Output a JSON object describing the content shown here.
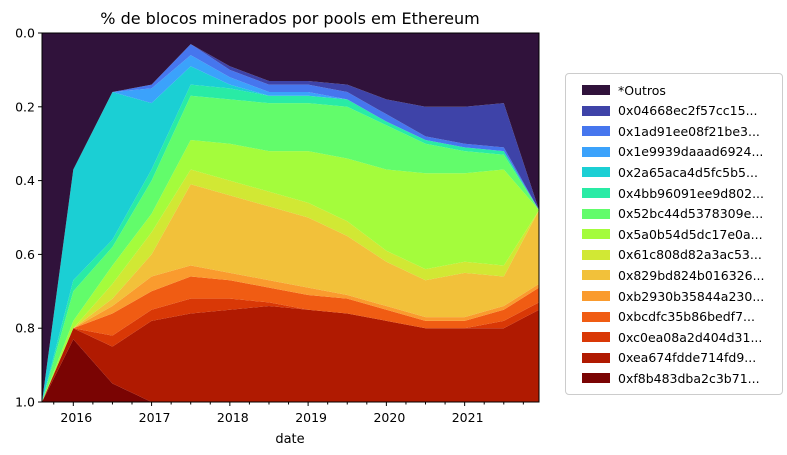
{
  "chart_data": {
    "type": "area",
    "title": "% de blocos minerados por pools em Ethereum",
    "xlabel": "date",
    "ylabel": "",
    "ylim": [
      1.0,
      0.0
    ],
    "y_inverted": true,
    "xlim": [
      2015.6,
      2021.95
    ],
    "xticks": [
      2016,
      2017,
      2018,
      2019,
      2020,
      2021
    ],
    "xtick_labels": [
      "2016",
      "2017",
      "2018",
      "2019",
      "2020",
      "2021"
    ],
    "yticks": [
      0.0,
      0.2,
      0.4,
      0.6,
      0.8,
      1.0
    ],
    "ytick_labels": [
      "0.0",
      "0.2",
      "0.4",
      "0.6",
      "0.8",
      "1.0"
    ],
    "stacking": "cumulative share from bottom (1.0) upward; Outros fills remainder to 0.0",
    "legend_position": "right",
    "x": [
      2015.6,
      2016.0,
      2016.5,
      2017.0,
      2017.5,
      2018.0,
      2018.5,
      2019.0,
      2019.5,
      2020.0,
      2020.5,
      2021.0,
      2021.5,
      2021.95
    ],
    "series": [
      {
        "name": "0xf8b483dba2c3b71...",
        "color": "#7a0403",
        "values": [
          0.0,
          0.17,
          0.05,
          0.0,
          0.0,
          0.0,
          0.0,
          0.0,
          0.0,
          0.0,
          0.0,
          0.0,
          0.0,
          0.0
        ]
      },
      {
        "name": "0xea674fdde714fd9...",
        "color": "#b01a01",
        "values": [
          0.0,
          0.03,
          0.1,
          0.22,
          0.24,
          0.25,
          0.26,
          0.25,
          0.24,
          0.22,
          0.2,
          0.2,
          0.2,
          0.25
        ]
      },
      {
        "name": "0xc0ea08a2d404d31...",
        "color": "#d93806",
        "values": [
          0.0,
          0.0,
          0.03,
          0.03,
          0.04,
          0.03,
          0.01,
          0.0,
          0.0,
          0.0,
          0.0,
          0.0,
          0.02,
          0.02
        ]
      },
      {
        "name": "0xbcdfc35b86bedf7...",
        "color": "#f05c13",
        "values": [
          0.0,
          0.0,
          0.06,
          0.05,
          0.06,
          0.05,
          0.04,
          0.04,
          0.04,
          0.03,
          0.02,
          0.02,
          0.03,
          0.04
        ]
      },
      {
        "name": "0xb2930b35844a230...",
        "color": "#fa9b2e",
        "values": [
          0.0,
          0.0,
          0.02,
          0.04,
          0.03,
          0.02,
          0.02,
          0.02,
          0.01,
          0.01,
          0.01,
          0.01,
          0.01,
          0.01
        ]
      },
      {
        "name": "0x829bd824b016326...",
        "color": "#f2c13a",
        "values": [
          0.0,
          0.0,
          0.02,
          0.06,
          0.22,
          0.21,
          0.2,
          0.19,
          0.16,
          0.12,
          0.1,
          0.12,
          0.08,
          0.2
        ]
      },
      {
        "name": "0x61c808d82a3ac53...",
        "color": "#d1e834",
        "values": [
          0.0,
          0.0,
          0.04,
          0.06,
          0.04,
          0.04,
          0.04,
          0.04,
          0.04,
          0.03,
          0.03,
          0.03,
          0.03,
          0.0
        ]
      },
      {
        "name": "0x5a0b54d5dc17e0a...",
        "color": "#a4fc3c",
        "values": [
          0.0,
          0.02,
          0.05,
          0.05,
          0.08,
          0.1,
          0.11,
          0.14,
          0.17,
          0.22,
          0.26,
          0.24,
          0.26,
          0.0
        ]
      },
      {
        "name": "0x52bc44d5378309e...",
        "color": "#62fc6b",
        "values": [
          0.0,
          0.08,
          0.05,
          0.09,
          0.12,
          0.12,
          0.13,
          0.13,
          0.14,
          0.12,
          0.08,
          0.06,
          0.04,
          0.0
        ]
      },
      {
        "name": "0x4bb96091ee9d802...",
        "color": "#29eba5",
        "values": [
          0.0,
          0.03,
          0.02,
          0.03,
          0.03,
          0.03,
          0.02,
          0.02,
          0.02,
          0.01,
          0.01,
          0.01,
          0.01,
          0.0
        ]
      },
      {
        "name": "0x2a65aca4d5fc5b5...",
        "color": "#1bcfd4",
        "values": [
          0.0,
          0.3,
          0.4,
          0.18,
          0.05,
          0.01,
          0.0,
          0.0,
          0.0,
          0.0,
          0.0,
          0.0,
          0.0,
          0.0
        ]
      },
      {
        "name": "0x1e9939daaad6924...",
        "color": "#3ba2fb",
        "values": [
          0.0,
          0.0,
          0.0,
          0.04,
          0.03,
          0.02,
          0.01,
          0.01,
          0.0,
          0.0,
          0.0,
          0.0,
          0.0,
          0.0
        ]
      },
      {
        "name": "0x1ad91ee08f21be3...",
        "color": "#4676ee",
        "values": [
          0.0,
          0.0,
          0.0,
          0.01,
          0.03,
          0.02,
          0.02,
          0.02,
          0.02,
          0.02,
          0.01,
          0.01,
          0.01,
          0.0
        ]
      },
      {
        "name": "0x04668ec2f57cc15...",
        "color": "#3e43a8",
        "values": [
          0.0,
          0.0,
          0.0,
          0.0,
          0.0,
          0.01,
          0.01,
          0.01,
          0.02,
          0.04,
          0.08,
          0.1,
          0.12,
          0.0
        ]
      },
      {
        "name": "*Outros",
        "color": "#30123b",
        "values": [
          1.0,
          0.37,
          0.16,
          0.14,
          0.07,
          0.09,
          0.13,
          0.13,
          0.14,
          0.18,
          0.2,
          0.2,
          0.19,
          0.48
        ]
      }
    ],
    "legend_order": [
      "*Outros",
      "0x04668ec2f57cc15...",
      "0x1ad91ee08f21be3...",
      "0x1e9939daaad6924...",
      "0x2a65aca4d5fc5b5...",
      "0x4bb96091ee9d802...",
      "0x52bc44d5378309e...",
      "0x5a0b54d5dc17e0a...",
      "0x61c808d82a3ac53...",
      "0x829bd824b016326...",
      "0xb2930b35844a230...",
      "0xbcdfc35b86bedf7...",
      "0xc0ea08a2d404d31...",
      "0xea674fdde714fd9...",
      "0xf8b483dba2c3b71..."
    ]
  }
}
